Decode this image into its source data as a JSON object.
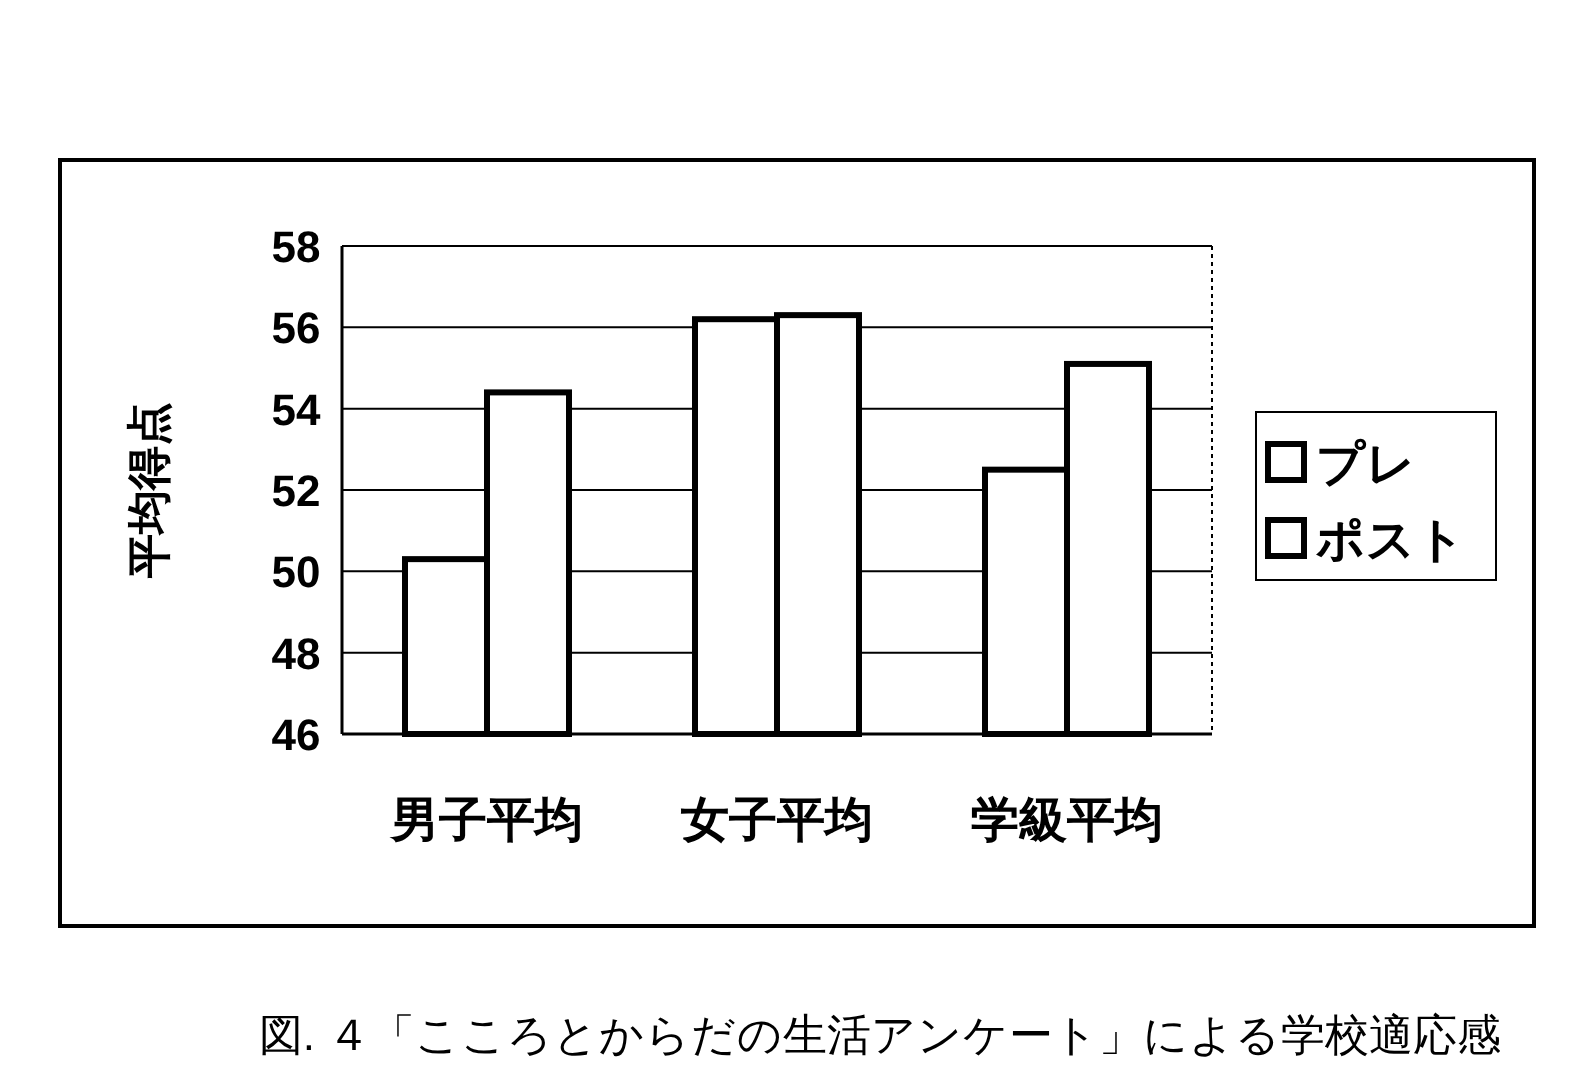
{
  "chart_data": {
    "type": "bar",
    "ylabel": "平均得点",
    "categories": [
      "男子平均",
      "女子平均",
      "学級平均"
    ],
    "series": [
      {
        "name": "プレ",
        "color": "#ffffff",
        "values": [
          50.3,
          56.2,
          52.5
        ]
      },
      {
        "name": "ポスト",
        "color": "#ffffff",
        "values": [
          54.4,
          56.3,
          55.1
        ]
      }
    ],
    "ylim": [
      46,
      58
    ],
    "yticks": [
      46,
      48,
      50,
      52,
      54,
      56,
      58
    ],
    "grid": "y",
    "legend": "right",
    "annotations": [
      "図. ４「こころとからだの生活アンケート」による学校適応感"
    ]
  }
}
